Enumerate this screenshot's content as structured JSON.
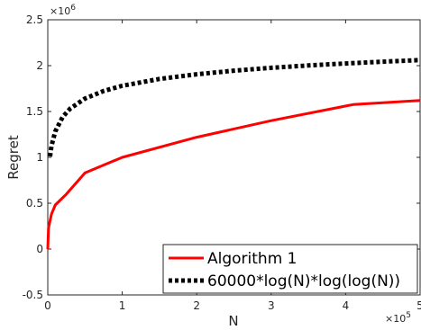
{
  "chart_data": {
    "type": "line",
    "xlabel": "N",
    "ylabel": "Regret",
    "x_exponent_label": "×10^5",
    "y_exponent_label": "×10^6",
    "xlim": [
      0,
      500000
    ],
    "ylim": [
      -500000,
      2500000
    ],
    "x_ticks": [
      0,
      100000,
      200000,
      300000,
      400000,
      500000
    ],
    "x_tick_labels": [
      "0",
      "1",
      "2",
      "3",
      "4",
      "5"
    ],
    "y_ticks": [
      -500000,
      0,
      500000,
      1000000,
      1500000,
      2000000,
      2500000
    ],
    "y_tick_labels": [
      "-0.5",
      "0",
      "0.5",
      "1",
      "1.5",
      "2",
      "2.5"
    ],
    "grid": false,
    "legend_position": "bottom-right",
    "series": [
      {
        "name": "Algorithm 1",
        "color": "#ff0000",
        "style": "solid",
        "x": [
          0,
          1000,
          5000,
          10000,
          25000,
          50000,
          100000,
          200000,
          300000,
          400000,
          410000,
          500000
        ],
        "y": [
          0,
          230000,
          380000,
          480000,
          600000,
          830000,
          1000000,
          1220000,
          1400000,
          1560000,
          1575000,
          1620000
        ]
      },
      {
        "name": "60000*log(N)*log(log(N))",
        "color": "#000000",
        "style": "dotted",
        "x": [
          3000,
          5000,
          10000,
          20000,
          30000,
          50000,
          75000,
          100000,
          150000,
          200000,
          250000,
          300000,
          350000,
          400000,
          450000,
          500000
        ],
        "y": [
          1010000,
          1125000,
          1282000,
          1440000,
          1531000,
          1641000,
          1724000,
          1780000,
          1855000,
          1906000,
          1945000,
          1976000,
          2002000,
          2024000,
          2043000,
          2061000
        ]
      }
    ]
  }
}
